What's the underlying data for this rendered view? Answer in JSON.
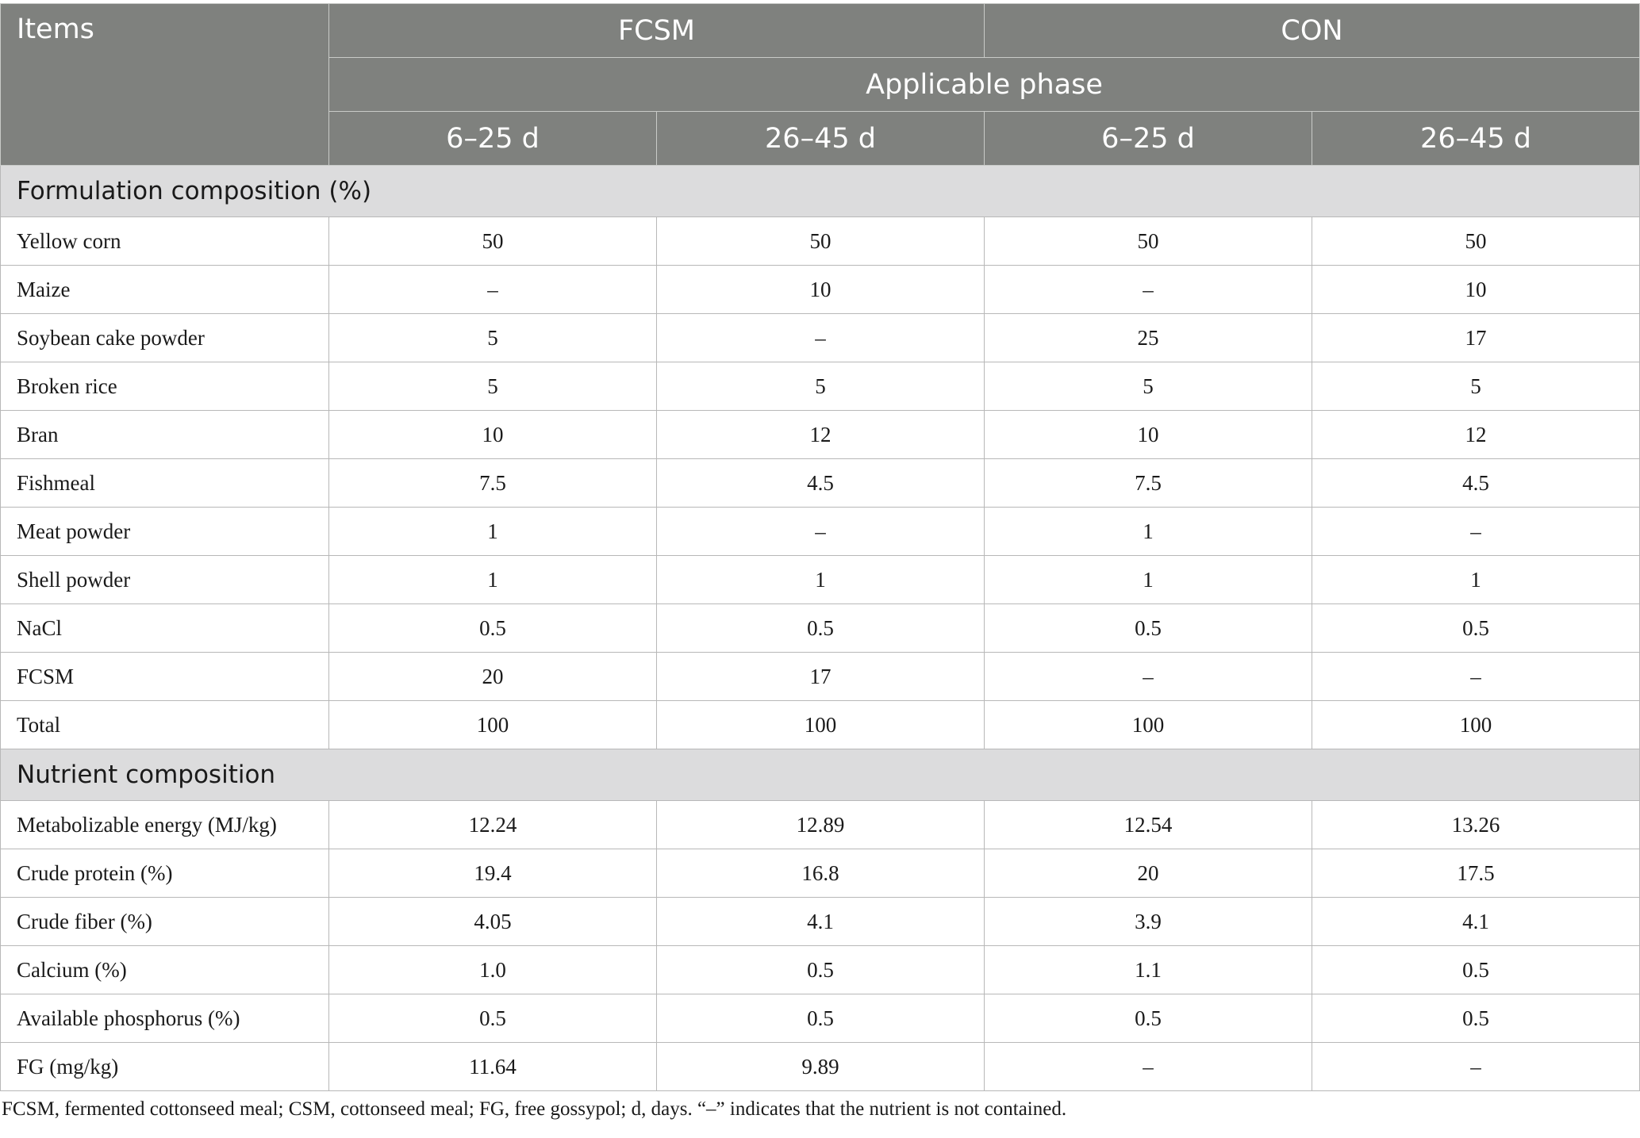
{
  "header": {
    "items": "Items",
    "group1": "FCSM",
    "group2": "CON",
    "phase": "Applicable phase",
    "periods": [
      "6–25 d",
      "26–45 d",
      "6–25 d",
      "26–45 d"
    ]
  },
  "sections": [
    {
      "title": "Formulation composition (%)",
      "rows": [
        {
          "label": "Yellow corn",
          "values": [
            "50",
            "50",
            "50",
            "50"
          ]
        },
        {
          "label": "Maize",
          "values": [
            "–",
            "10",
            "–",
            "10"
          ]
        },
        {
          "label": "Soybean cake powder",
          "values": [
            "5",
            "–",
            "25",
            "17"
          ]
        },
        {
          "label": "Broken rice",
          "values": [
            "5",
            "5",
            "5",
            "5"
          ]
        },
        {
          "label": "Bran",
          "values": [
            "10",
            "12",
            "10",
            "12"
          ]
        },
        {
          "label": "Fishmeal",
          "values": [
            "7.5",
            "4.5",
            "7.5",
            "4.5"
          ]
        },
        {
          "label": "Meat powder",
          "values": [
            "1",
            "–",
            "1",
            "–"
          ]
        },
        {
          "label": "Shell powder",
          "values": [
            "1",
            "1",
            "1",
            "1"
          ]
        },
        {
          "label": "NaCl",
          "values": [
            "0.5",
            "0.5",
            "0.5",
            "0.5"
          ]
        },
        {
          "label": "FCSM",
          "values": [
            "20",
            "17",
            "–",
            "–"
          ]
        },
        {
          "label": "Total",
          "values": [
            "100",
            "100",
            "100",
            "100"
          ]
        }
      ]
    },
    {
      "title": "Nutrient composition",
      "rows": [
        {
          "label": "Metabolizable energy (MJ/kg)",
          "values": [
            "12.24",
            "12.89",
            "12.54",
            "13.26"
          ]
        },
        {
          "label": "Crude protein (%)",
          "values": [
            "19.4",
            "16.8",
            "20",
            "17.5"
          ]
        },
        {
          "label": "Crude fiber (%)",
          "values": [
            "4.05",
            "4.1",
            "3.9",
            "4.1"
          ]
        },
        {
          "label": "Calcium (%)",
          "values": [
            "1.0",
            "0.5",
            "1.1",
            "0.5"
          ]
        },
        {
          "label": "Available phosphorus (%)",
          "values": [
            "0.5",
            "0.5",
            "0.5",
            "0.5"
          ]
        },
        {
          "label": "FG (mg/kg)",
          "values": [
            "11.64",
            "9.89",
            "–",
            "–"
          ]
        }
      ]
    }
  ],
  "footnote": "FCSM, fermented cottonseed meal; CSM, cottonseed meal; FG, free gossypol; d, days. “–” indicates that the nutrient is not contained."
}
